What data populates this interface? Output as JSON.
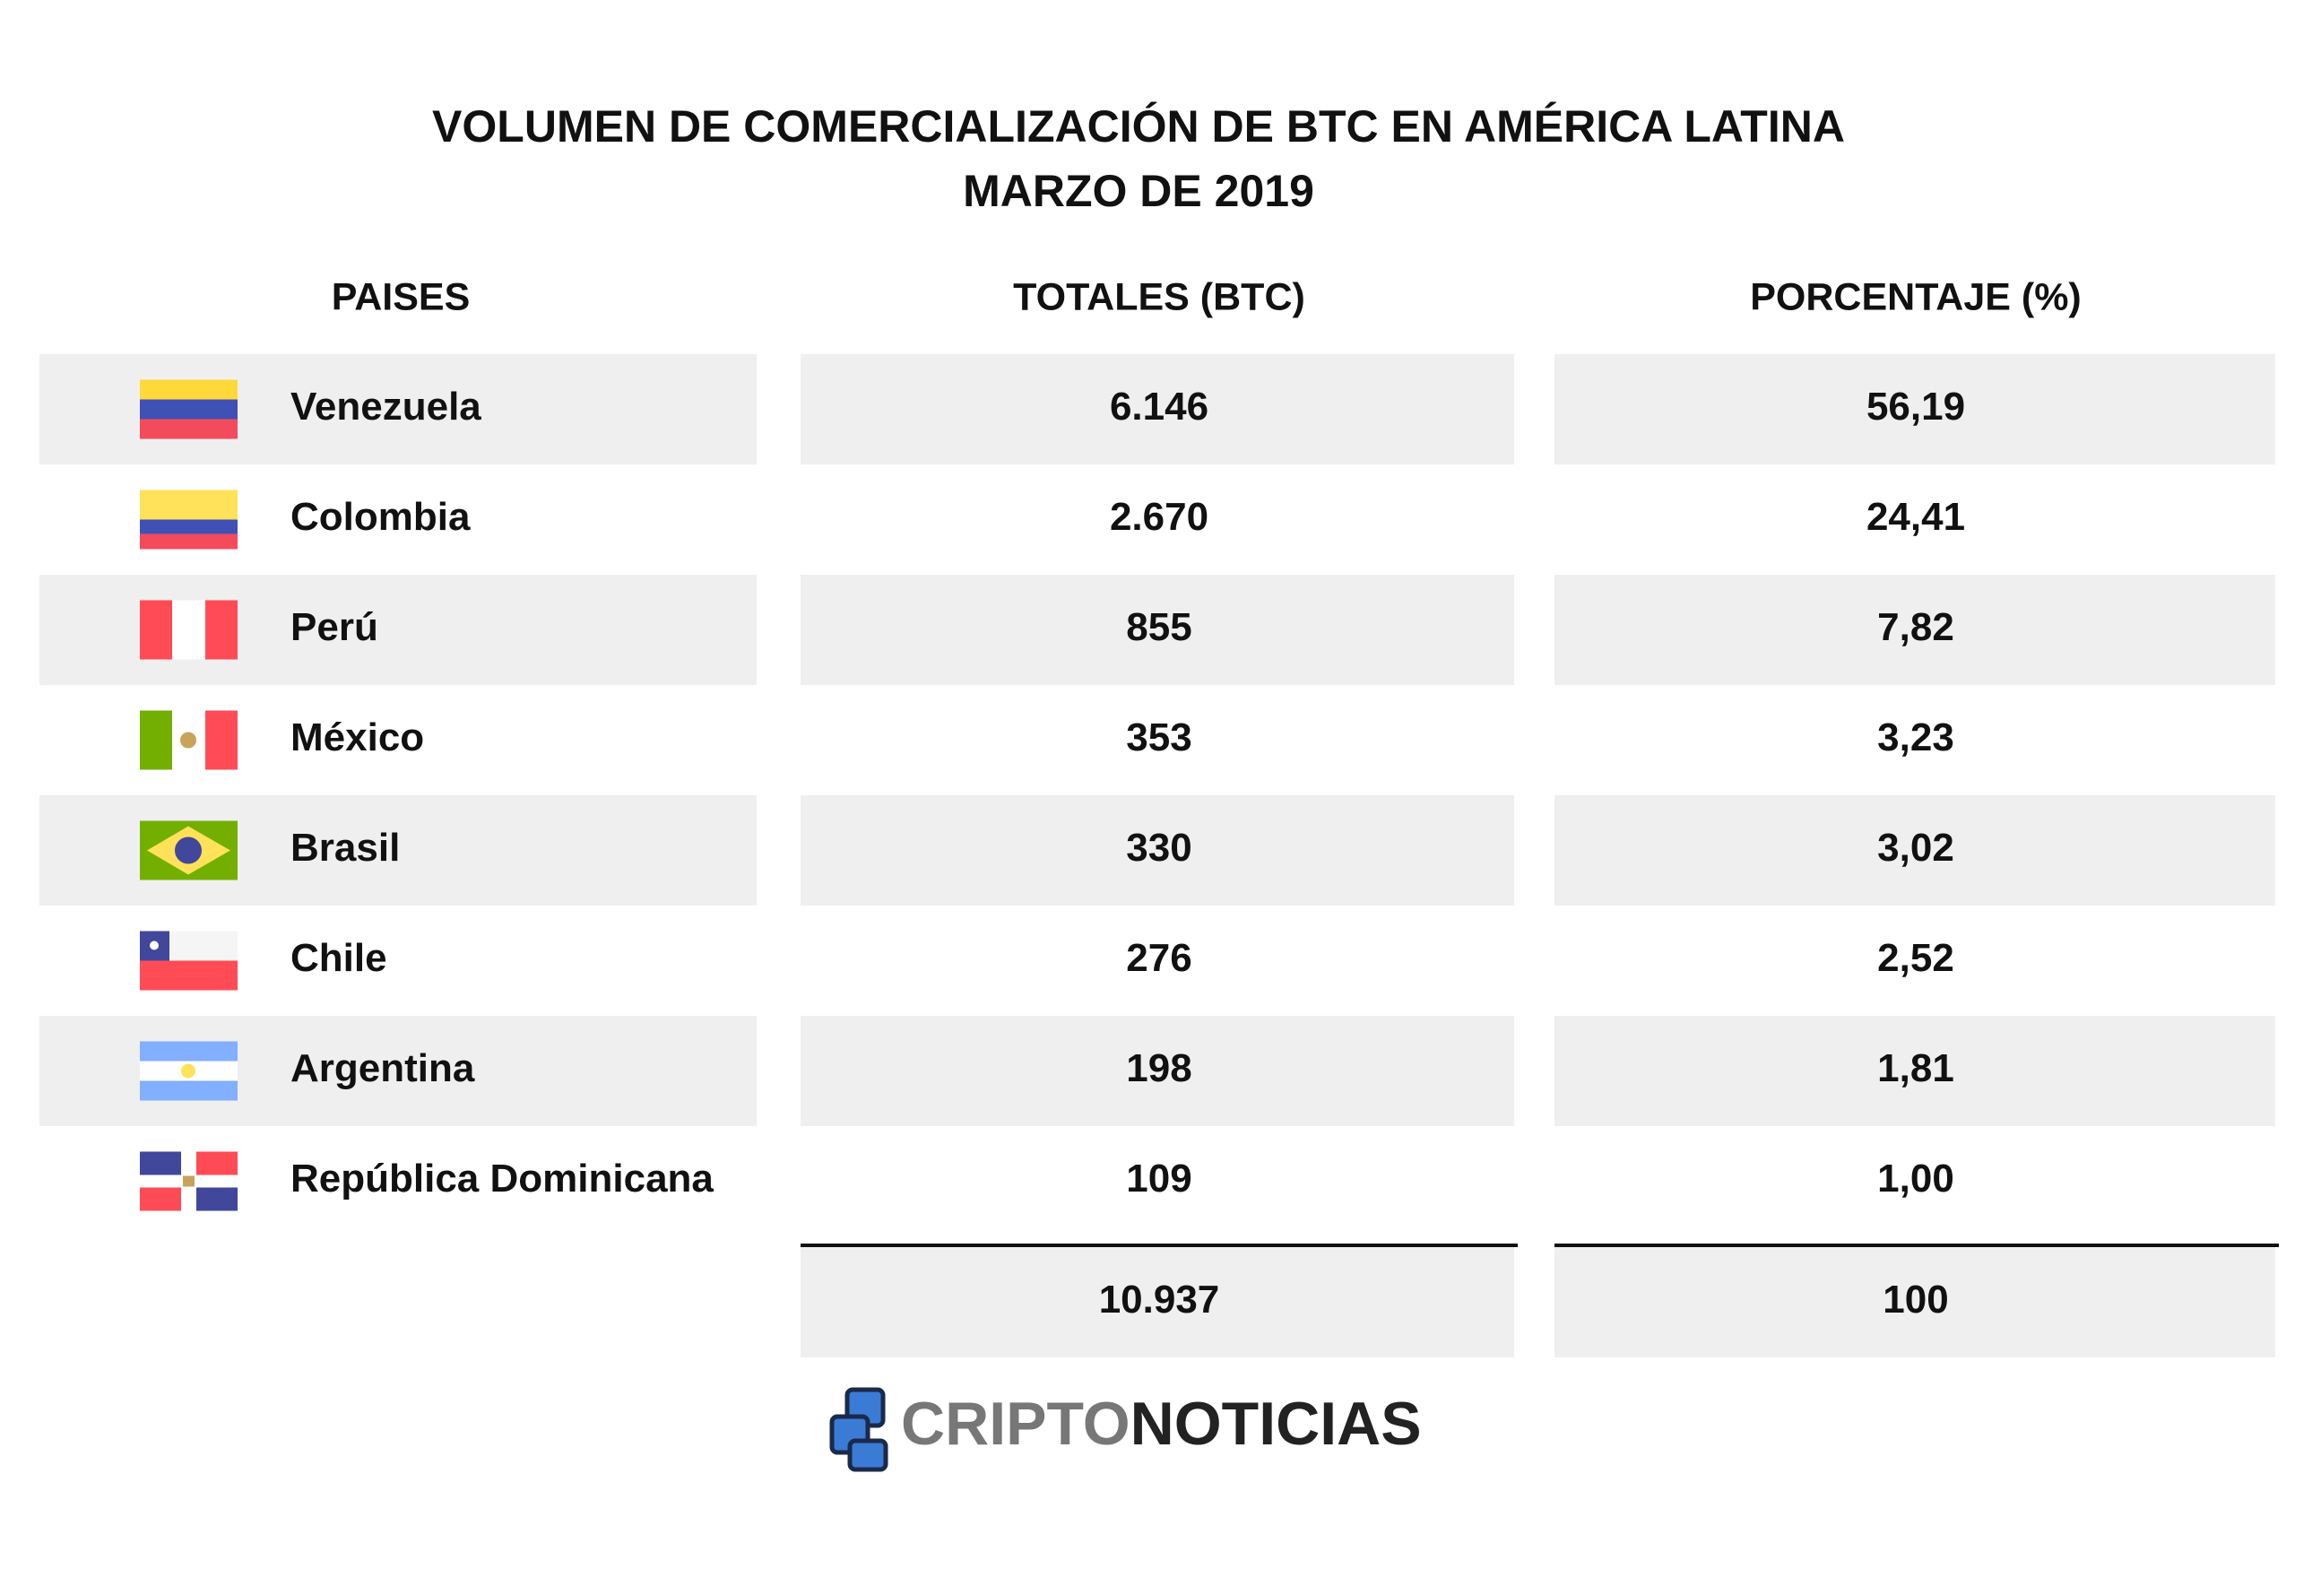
{
  "title": [
    "VOLUMEN DE COMERCIALIZACIÓN DE BTC EN AMÉRICA LATINA",
    "MARZO DE 2019"
  ],
  "table": {
    "headers": [
      "PAISES",
      "TOTALES (BTC)",
      "PORCENTAJE (%)"
    ],
    "rows": [
      [
        "Venezuela",
        "6.146",
        "56,19"
      ],
      [
        "Colombia",
        "2.670",
        "24,41"
      ],
      [
        "Perú",
        "855",
        "7,82"
      ],
      [
        "México",
        "353",
        "3,23"
      ],
      [
        "Brasil",
        "330",
        "3,02"
      ],
      [
        "Chile",
        "276",
        "2,52"
      ],
      [
        "Argentina",
        "198",
        "1,81"
      ],
      [
        "República Dominicana",
        "109",
        "1,00"
      ]
    ],
    "totals": [
      "10.937",
      "100"
    ]
  },
  "logo": [
    "CRIPTO",
    "NOTICIAS"
  ]
}
